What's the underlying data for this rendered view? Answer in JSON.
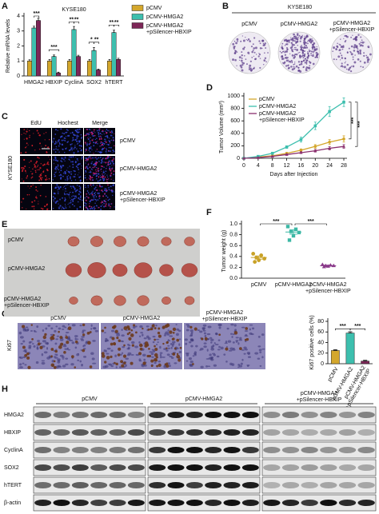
{
  "panel_letters": [
    "A",
    "B",
    "C",
    "D",
    "E",
    "F",
    "G",
    "H"
  ],
  "chart_data": [
    {
      "type": "bar",
      "title": "KYSE180",
      "y_label": "Relative mRNA levels",
      "categories": [
        "HMGA2",
        "HBXIP",
        "CyclinA",
        "SOX2",
        "hTERT"
      ],
      "series": [
        {
          "name": "pCMV",
          "color": "#d4a72c",
          "values": [
            1.0,
            1.0,
            1.0,
            1.0,
            1.0
          ],
          "errors": [
            0.08,
            0.1,
            0.1,
            0.1,
            0.1
          ]
        },
        {
          "name": "pCMV-HMGA2",
          "color": "#3dbfae",
          "values": [
            3.2,
            1.3,
            3.1,
            1.7,
            2.9
          ],
          "errors": [
            0.12,
            0.1,
            0.2,
            0.2,
            0.15
          ]
        },
        {
          "name": "pCMV-HMGA2 +pSilencer-HBXIP",
          "color": "#7d2657",
          "values": [
            3.7,
            0.2,
            1.3,
            0.4,
            1.1
          ],
          "errors": [
            0.15,
            0.05,
            0.08,
            0.05,
            0.08
          ]
        }
      ],
      "ylim": [
        0,
        4
      ],
      "yticks": [
        0,
        1,
        2,
        3,
        4
      ],
      "annotations": [
        "***",
        "***",
        "**",
        "**",
        "*",
        "**",
        "**",
        "**"
      ]
    },
    {
      "type": "line",
      "y_label": "Tumor Volume (mm³)",
      "x_label": "Days after Injection",
      "x": [
        0,
        4,
        8,
        12,
        16,
        20,
        24,
        28
      ],
      "series": [
        {
          "name": "pCMV",
          "color": "#d4a72c",
          "values": [
            0,
            20,
            40,
            80,
            130,
            190,
            260,
            310
          ],
          "errors": [
            0,
            5,
            10,
            15,
            20,
            30,
            40,
            50
          ]
        },
        {
          "name": "pCMV-HMGA2",
          "color": "#3dbfae",
          "values": [
            0,
            30,
            80,
            180,
            300,
            520,
            750,
            900
          ],
          "errors": [
            0,
            5,
            10,
            20,
            40,
            60,
            80,
            70
          ]
        },
        {
          "name": "pCMV-HMGA2 +pSilencer-HBXIP",
          "color": "#8a2f6e",
          "values": [
            0,
            10,
            30,
            60,
            90,
            120,
            160,
            190
          ],
          "errors": [
            0,
            5,
            5,
            10,
            15,
            20,
            25,
            30
          ]
        }
      ],
      "xlim": [
        0,
        28
      ],
      "xticks": [
        0,
        4,
        8,
        12,
        16,
        20,
        24,
        28
      ],
      "ylim": [
        0,
        1000
      ],
      "yticks": [
        0,
        200,
        400,
        600,
        800,
        1000
      ],
      "annotations": [
        "***",
        "***"
      ]
    },
    {
      "type": "strip",
      "y_label": "Tumor weight (g)",
      "groups": [
        {
          "name": "pCMV",
          "color": "#c9a227",
          "values": [
            0.45,
            0.42,
            0.38,
            0.36,
            0.33,
            0.3
          ],
          "mean": 0.38,
          "error": 0.03
        },
        {
          "name": "pCMV-HMGA2",
          "color": "#3cb8a5",
          "values": [
            0.95,
            0.9,
            0.86,
            0.84,
            0.78,
            0.7
          ],
          "mean": 0.85,
          "error": 0.04
        },
        {
          "name": "pCMV-HMGA2 +pSilencer-HBXIP",
          "color": "#8a3a8a",
          "values": [
            0.25,
            0.24,
            0.23,
            0.23,
            0.22,
            0.21
          ],
          "mean": 0.23,
          "error": 0.01
        }
      ],
      "ylim": [
        0,
        1
      ],
      "yticks": [
        {
          "value": 0,
          "label": "0.0"
        },
        0.2,
        0.4,
        0.6,
        0.8,
        {
          "value": 1,
          "label": "1.0"
        }
      ],
      "annotations": [
        "***",
        "***"
      ]
    },
    {
      "type": "bar",
      "y_label": "Ki67 positive cells (%)",
      "categories": [
        "pCMV",
        "pCMV-HMGA2",
        "pCMV-HMGA2 +pSilencer-HBXIP"
      ],
      "series": [
        {
          "colors": [
            "#d4a72c",
            "#3dbfae",
            "#7d2657"
          ],
          "values": [
            25,
            58,
            5
          ],
          "errors": [
            1.5,
            2.5,
            1.5
          ]
        }
      ],
      "ylim": [
        0,
        80
      ],
      "yticks": [
        0,
        20,
        40,
        60,
        80
      ],
      "annotations": [
        "***",
        "***"
      ]
    }
  ],
  "panel_b": {
    "title": "KYSE180",
    "labels": [
      "pCMV",
      "pCMV-HMGA2",
      "pCMV-HMGA2 +pSilencer-HBXIP"
    ]
  },
  "panel_c": {
    "side_label": "KYSE180",
    "columns": [
      "EdU",
      "Hochest",
      "Merge"
    ],
    "rows": [
      "pCMV",
      "pCMV-HMGA2",
      "pCMV-HMGA2 +pSilencer-HBXIP"
    ]
  },
  "panel_e": {
    "rows": [
      "pCMV",
      "pCMV-HMGA2",
      "pCMV-HMGA2 +pSilencer-HBXIP"
    ]
  },
  "panel_g": {
    "row_label": "Ki67",
    "columns": [
      "pCMV",
      "pCMV-HMGA2",
      "pCMV-HMGA2 +pSilencer-HBXIP"
    ]
  },
  "panel_h": {
    "groups": [
      "pCMV",
      "pCMV-HMGA2",
      "pCMV-HMGA2 +pSilencer-HBXIP"
    ],
    "rows": [
      "HMGA2",
      "HBXIP",
      "CyclinA",
      "SOX2",
      "hTERT",
      "β-actin"
    ]
  }
}
